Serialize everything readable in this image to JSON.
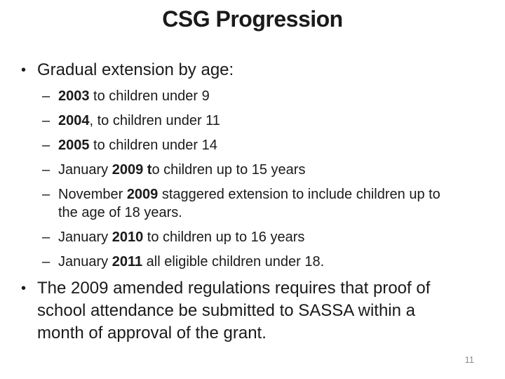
{
  "slide": {
    "title": "CSG Progression",
    "page_number": "11",
    "background_color": "#ffffff",
    "text_color": "#1a1a1a",
    "page_number_color": "#8c8c8c",
    "bullet_char": "•",
    "dash_char": "–",
    "content": [
      {
        "segments": [
          {
            "text": "Gradual extension by age:",
            "bold": false
          }
        ],
        "children": [
          {
            "segments": [
              {
                "text": "2003",
                "bold": true
              },
              {
                "text": " to children under 9",
                "bold": false
              }
            ]
          },
          {
            "segments": [
              {
                "text": "2004",
                "bold": true
              },
              {
                "text": ", to children under 11",
                "bold": false
              }
            ]
          },
          {
            "segments": [
              {
                "text": "2005",
                "bold": true
              },
              {
                "text": " to children under 14",
                "bold": false
              }
            ]
          },
          {
            "segments": [
              {
                "text": "January ",
                "bold": false
              },
              {
                "text": "2009 t",
                "bold": true
              },
              {
                "text": "o children up to 15 years",
                "bold": false
              }
            ]
          },
          {
            "segments": [
              {
                "text": "November ",
                "bold": false
              },
              {
                "text": "2009",
                "bold": true
              },
              {
                "text": " staggered extension to include children up to the age of 18 years.",
                "bold": false
              }
            ]
          },
          {
            "segments": [
              {
                "text": "January ",
                "bold": false
              },
              {
                "text": "2010",
                "bold": true
              },
              {
                "text": " to children up to 16 years",
                "bold": false
              }
            ]
          },
          {
            "segments": [
              {
                "text": "January ",
                "bold": false
              },
              {
                "text": "2011",
                "bold": true
              },
              {
                "text": " all eligible children under 18.",
                "bold": false
              }
            ]
          }
        ]
      },
      {
        "segments": [
          {
            "text": "The 2009 amended regulations requires that proof of school attendance be submitted to SASSA within a month of approval of the grant.",
            "bold": false
          }
        ],
        "children": []
      }
    ]
  }
}
